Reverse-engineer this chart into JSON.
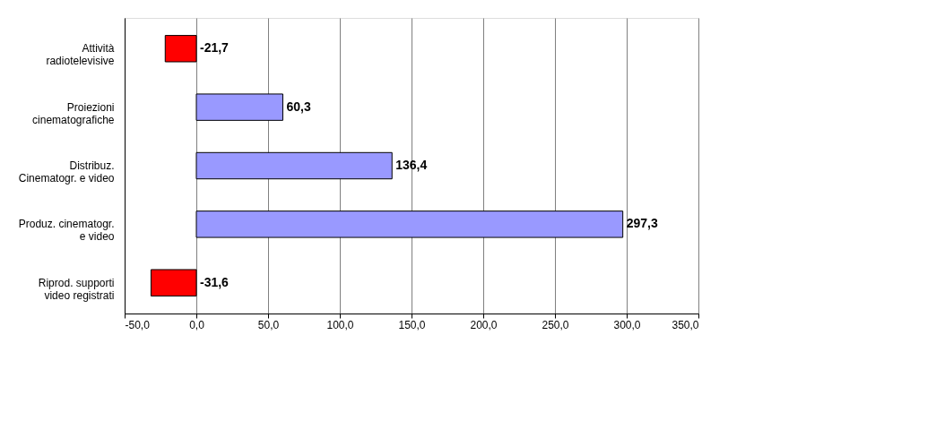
{
  "chart_data": {
    "type": "bar",
    "orientation": "horizontal",
    "categories": [
      "Attività\nradiotelevisive",
      "Proiezioni\ncinematografiche",
      "Distribuz.\nCinematogr. e video",
      "Produz. cinematogr.\ne video",
      "Riprod. supporti\nvideo registrati"
    ],
    "values": [
      -21.7,
      60.3,
      136.4,
      297.3,
      -31.6
    ],
    "colors": [
      "#ff0000",
      "#9999ff",
      "#9999ff",
      "#9999ff",
      "#ff0000"
    ],
    "value_labels": [
      "-21,7",
      "60,3",
      "136,4",
      "297,3",
      "-31,6"
    ],
    "xlim": [
      -50,
      350
    ],
    "xticks": [
      {
        "value": -50,
        "label": "-50,0"
      },
      {
        "value": 0,
        "label": "0,0"
      },
      {
        "value": 50,
        "label": "50,0"
      },
      {
        "value": 100,
        "label": "100,0"
      },
      {
        "value": 150,
        "label": "150,0"
      },
      {
        "value": 200,
        "label": "200,0"
      },
      {
        "value": 250,
        "label": "250,0"
      },
      {
        "value": 300,
        "label": "300,0"
      },
      {
        "value": 350,
        "label": "350,0"
      }
    ],
    "grid": "x",
    "legend": false
  }
}
